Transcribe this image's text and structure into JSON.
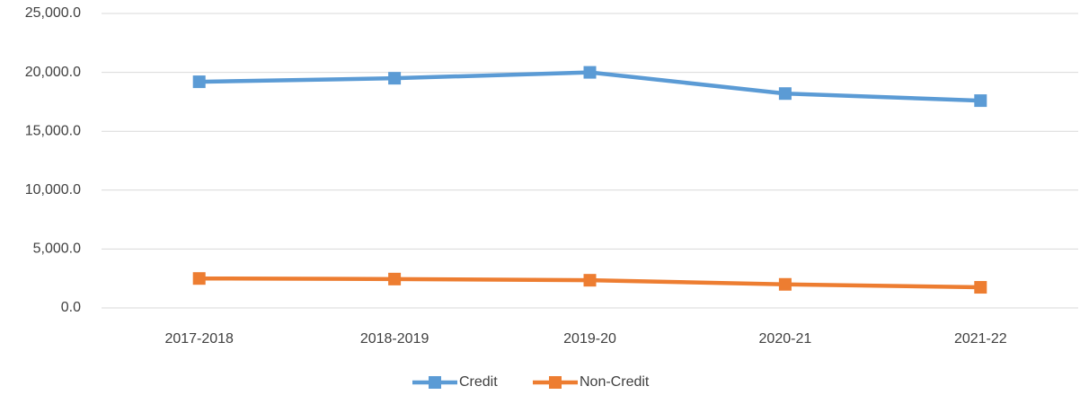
{
  "chart_data": {
    "type": "line",
    "categories": [
      "2017-2018",
      "2018-2019",
      "2019-20",
      "2020-21",
      "2021-22"
    ],
    "series": [
      {
        "name": "Credit",
        "color": "#5b9bd5",
        "values": [
          19200,
          19500,
          20000,
          18200,
          17600
        ]
      },
      {
        "name": "Non-Credit",
        "color": "#ed7d31",
        "values": [
          2500,
          2450,
          2350,
          2000,
          1750
        ]
      }
    ],
    "ylim": [
      0,
      25000
    ],
    "yticks": [
      {
        "value": 0,
        "label": "0.0"
      },
      {
        "value": 5000,
        "label": "5,000.0"
      },
      {
        "value": 10000,
        "label": "10,000.0"
      },
      {
        "value": 15000,
        "label": "15,000.0"
      },
      {
        "value": 20000,
        "label": "20,000.0"
      },
      {
        "value": 25000,
        "label": "25,000.0"
      }
    ],
    "grid": true,
    "legend": "bottom"
  }
}
